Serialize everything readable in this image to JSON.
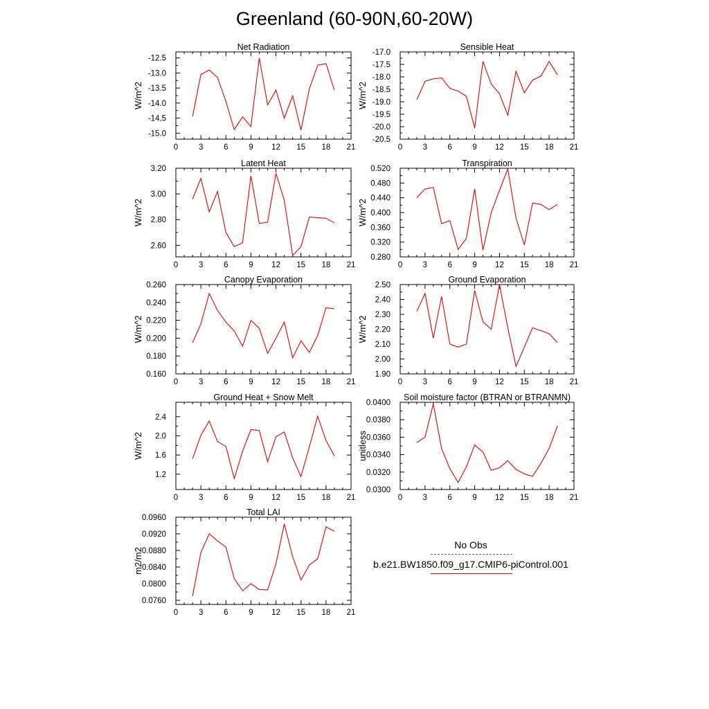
{
  "title": "Greenland (60-90N,60-20W)",
  "colors": {
    "model": "#e00000",
    "obs": "#4444aa"
  },
  "legend": [
    {
      "label": "No Obs",
      "style": "dashed",
      "color": "#4444aa"
    },
    {
      "label": "b.e21.BW1850.f09_g17.CMIP6-piControl.001",
      "style": "solid",
      "color": "#e00000"
    }
  ],
  "chart_data": [
    {
      "type": "line",
      "title": "Net Radiation",
      "ylabel": "W/m^2",
      "xlim": [
        0,
        21
      ],
      "xticks": [
        "0",
        "3",
        "6",
        "9",
        "12",
        "15",
        "18",
        "21"
      ],
      "ylim": [
        -15.2,
        -12.3
      ],
      "yticks": [
        "-12.5",
        "-13.0",
        "-13.5",
        "-14.0",
        "-14.5",
        "-15.0"
      ],
      "ytick_values": [
        -12.5,
        -13.0,
        -13.5,
        -14.0,
        -14.5,
        -15.0
      ],
      "x": [
        2,
        3,
        4,
        5,
        6,
        7,
        8,
        9,
        10,
        11,
        12,
        13,
        14,
        15,
        16,
        17,
        18,
        19
      ],
      "series": [
        {
          "values": [
            -14.45,
            -13.05,
            -12.9,
            -13.15,
            -13.95,
            -14.88,
            -14.46,
            -14.78,
            -12.5,
            -14.06,
            -13.57,
            -14.5,
            -13.76,
            -14.9,
            -13.53,
            -12.74,
            -12.69,
            -13.57
          ]
        }
      ]
    },
    {
      "type": "line",
      "title": "Sensible Heat",
      "ylabel": "W/m^2",
      "xlim": [
        0,
        21
      ],
      "xticks": [
        "0",
        "3",
        "6",
        "9",
        "12",
        "15",
        "18",
        "21"
      ],
      "ylim": [
        -20.5,
        -17.0
      ],
      "yticks": [
        "-17.0",
        "-17.5",
        "-18.0",
        "-18.5",
        "-19.0",
        "-19.5",
        "-20.0",
        "-20.5"
      ],
      "ytick_values": [
        -17.0,
        -17.5,
        -18.0,
        -18.5,
        -19.0,
        -19.5,
        -20.0,
        -20.5
      ],
      "x": [
        2,
        3,
        4,
        5,
        6,
        7,
        8,
        9,
        10,
        11,
        12,
        13,
        14,
        15,
        16,
        17,
        18,
        19
      ],
      "series": [
        {
          "values": [
            -18.92,
            -18.18,
            -18.08,
            -18.04,
            -18.46,
            -18.57,
            -18.78,
            -20.05,
            -17.38,
            -18.29,
            -18.68,
            -19.54,
            -17.78,
            -18.64,
            -18.13,
            -17.97,
            -17.38,
            -17.92
          ]
        }
      ]
    },
    {
      "type": "line",
      "title": "Latent Heat",
      "ylabel": "W/m^2",
      "xlim": [
        0,
        21
      ],
      "xticks": [
        "0",
        "3",
        "6",
        "9",
        "12",
        "15",
        "18",
        "21"
      ],
      "ylim": [
        2.51,
        3.2
      ],
      "yticks": [
        "3.20",
        "3.00",
        "2.80",
        "2.60"
      ],
      "ytick_values": [
        3.2,
        3.0,
        2.8,
        2.6
      ],
      "x": [
        2,
        3,
        4,
        5,
        6,
        7,
        8,
        9,
        10,
        11,
        12,
        13,
        14,
        15,
        16,
        17,
        18,
        19
      ],
      "series": [
        {
          "values": [
            2.96,
            3.12,
            2.86,
            3.02,
            2.7,
            2.59,
            2.62,
            3.14,
            2.77,
            2.78,
            3.16,
            2.95,
            2.52,
            2.59,
            2.82,
            2.815,
            2.81,
            2.775
          ]
        }
      ]
    },
    {
      "type": "line",
      "title": "Transpiration",
      "ylabel": "W/m^2",
      "xlim": [
        0,
        21
      ],
      "xticks": [
        "0",
        "3",
        "6",
        "9",
        "12",
        "15",
        "18",
        "21"
      ],
      "ylim": [
        0.28,
        0.52
      ],
      "yticks": [
        "0.520",
        "0.480",
        "0.440",
        "0.400",
        "0.360",
        "0.320",
        "0.280"
      ],
      "ytick_values": [
        0.52,
        0.48,
        0.44,
        0.4,
        0.36,
        0.32,
        0.28
      ],
      "x": [
        2,
        3,
        4,
        5,
        6,
        7,
        8,
        9,
        10,
        11,
        12,
        13,
        14,
        15,
        16,
        17,
        18,
        19
      ],
      "series": [
        {
          "values": [
            0.44,
            0.464,
            0.468,
            0.37,
            0.378,
            0.3,
            0.33,
            0.464,
            0.298,
            0.4,
            0.46,
            0.518,
            0.385,
            0.312,
            0.426,
            0.422,
            0.408,
            0.422
          ]
        }
      ]
    },
    {
      "type": "line",
      "title": "Canopy Evaporation",
      "ylabel": "W/m^2",
      "xlim": [
        0,
        21
      ],
      "xticks": [
        "0",
        "3",
        "6",
        "9",
        "12",
        "15",
        "18",
        "21"
      ],
      "ylim": [
        0.16,
        0.26
      ],
      "yticks": [
        "0.260",
        "0.240",
        "0.220",
        "0.200",
        "0.180",
        "0.160"
      ],
      "ytick_values": [
        0.26,
        0.24,
        0.22,
        0.2,
        0.18,
        0.16
      ],
      "x": [
        2,
        3,
        4,
        5,
        6,
        7,
        8,
        9,
        10,
        11,
        12,
        13,
        14,
        15,
        16,
        17,
        18,
        19
      ],
      "series": [
        {
          "values": [
            0.195,
            0.216,
            0.25,
            0.231,
            0.218,
            0.208,
            0.191,
            0.22,
            0.211,
            0.183,
            0.2,
            0.218,
            0.178,
            0.197,
            0.184,
            0.203,
            0.234,
            0.233
          ]
        }
      ]
    },
    {
      "type": "line",
      "title": "Ground Evaporation",
      "ylabel": "W/m^2",
      "xlim": [
        0,
        21
      ],
      "xticks": [
        "0",
        "3",
        "6",
        "9",
        "12",
        "15",
        "18",
        "21"
      ],
      "ylim": [
        1.9,
        2.5
      ],
      "yticks": [
        "2.50",
        "2.40",
        "2.30",
        "2.20",
        "2.10",
        "2.00",
        "1.90"
      ],
      "ytick_values": [
        2.5,
        2.4,
        2.3,
        2.2,
        2.1,
        2.0,
        1.9
      ],
      "x": [
        2,
        3,
        4,
        5,
        6,
        7,
        8,
        9,
        10,
        11,
        12,
        13,
        14,
        15,
        16,
        17,
        18,
        19
      ],
      "series": [
        {
          "values": [
            2.32,
            2.44,
            2.14,
            2.42,
            2.1,
            2.08,
            2.1,
            2.46,
            2.25,
            2.2,
            2.5,
            2.21,
            1.95,
            2.08,
            2.21,
            2.19,
            2.17,
            2.11
          ]
        }
      ]
    },
    {
      "type": "line",
      "title": "Ground Heat + Snow Melt",
      "ylabel": "W/m^2",
      "xlim": [
        0,
        21
      ],
      "xticks": [
        "0",
        "3",
        "6",
        "9",
        "12",
        "15",
        "18",
        "21"
      ],
      "ylim": [
        0.88,
        2.7
      ],
      "yticks": [
        "2.4",
        "2.0",
        "1.6",
        "1.2"
      ],
      "ytick_values": [
        2.4,
        2.0,
        1.6,
        1.2
      ],
      "x": [
        2,
        3,
        4,
        5,
        6,
        7,
        8,
        9,
        10,
        11,
        12,
        13,
        14,
        15,
        16,
        17,
        18,
        19
      ],
      "series": [
        {
          "values": [
            1.52,
            2.01,
            2.31,
            1.88,
            1.78,
            1.11,
            1.68,
            2.13,
            2.11,
            1.46,
            1.98,
            2.08,
            1.54,
            1.15,
            1.77,
            2.41,
            1.9,
            1.58
          ]
        }
      ]
    },
    {
      "type": "line",
      "title": "Soil moisture factor (BTRAN or BTRANMN)",
      "ylabel": "unitless",
      "xlim": [
        0,
        21
      ],
      "xticks": [
        "0",
        "3",
        "6",
        "9",
        "12",
        "15",
        "18",
        "21"
      ],
      "ylim": [
        0.03,
        0.04
      ],
      "yticks": [
        "0.0400",
        "0.0380",
        "0.0360",
        "0.0340",
        "0.0320",
        "0.0300"
      ],
      "ytick_values": [
        0.04,
        0.038,
        0.036,
        0.034,
        0.032,
        0.03
      ],
      "x": [
        2,
        3,
        4,
        5,
        6,
        7,
        8,
        9,
        10,
        11,
        12,
        13,
        14,
        15,
        16,
        17,
        18,
        19
      ],
      "series": [
        {
          "values": [
            0.0354,
            0.036,
            0.0398,
            0.0347,
            0.0324,
            0.0308,
            0.0326,
            0.0351,
            0.0343,
            0.0322,
            0.0325,
            0.0333,
            0.0323,
            0.0318,
            0.0315,
            0.033,
            0.0347,
            0.0373
          ]
        }
      ]
    },
    {
      "type": "line",
      "title": "Total LAI",
      "ylabel": "m2/m2",
      "xlim": [
        0,
        21
      ],
      "xticks": [
        "0",
        "3",
        "6",
        "9",
        "12",
        "15",
        "18",
        "21"
      ],
      "ylim": [
        0.075,
        0.096
      ],
      "yticks": [
        "0.0960",
        "0.0920",
        "0.0880",
        "0.0840",
        "0.0800",
        "0.0760"
      ],
      "ytick_values": [
        0.096,
        0.092,
        0.088,
        0.084,
        0.08,
        0.076
      ],
      "x": [
        2,
        3,
        4,
        5,
        6,
        7,
        8,
        9,
        10,
        11,
        12,
        13,
        14,
        15,
        16,
        17,
        18,
        19
      ],
      "series": [
        {
          "values": [
            0.077,
            0.0875,
            0.092,
            0.0903,
            0.0888,
            0.0812,
            0.0783,
            0.08,
            0.0786,
            0.0785,
            0.0848,
            0.0944,
            0.0865,
            0.0809,
            0.0845,
            0.086,
            0.0937,
            0.0926
          ]
        }
      ]
    }
  ]
}
